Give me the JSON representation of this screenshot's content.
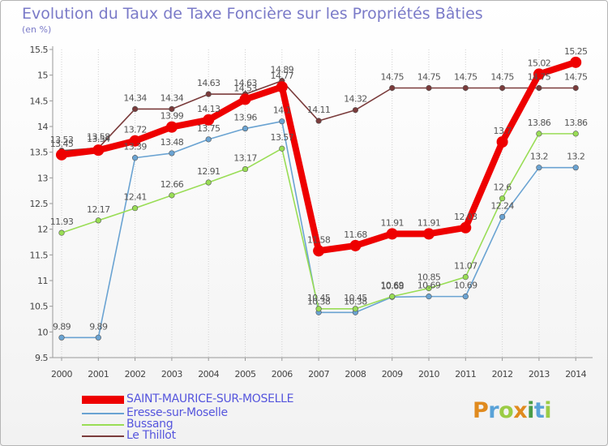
{
  "title": "Evolution du Taux de Taxe Foncière sur les Propriétés Bâties",
  "unit_label": "(en %)",
  "logo": "Proxiti",
  "chart_data": {
    "type": "line",
    "title": "Evolution du Taux de Taxe Foncière sur les Propriétés Bâties",
    "ylabel": "(en %)",
    "xlabel": "",
    "x": [
      "2000",
      "2001",
      "2002",
      "2003",
      "2004",
      "2005",
      "2006",
      "2007",
      "2008",
      "2009",
      "2010",
      "2011",
      "2012",
      "2013",
      "2014"
    ],
    "ylim": [
      9.5,
      15.5
    ],
    "yticks": [
      "9.5",
      "10",
      "10.5",
      "11",
      "11.5",
      "12",
      "12.5",
      "13",
      "13.5",
      "14",
      "14.5",
      "15",
      "15.5"
    ],
    "grid": "vertical dotted",
    "legend": "bottom-left",
    "series": [
      {
        "name": "SAINT-MAURICE-SUR-MOSELLE",
        "color": "#ee0000",
        "values": [
          13.45,
          13.54,
          13.72,
          13.99,
          14.13,
          14.53,
          14.77,
          11.58,
          11.68,
          11.91,
          11.91,
          12.03,
          13.7,
          15.02,
          15.25
        ],
        "labels": [
          "13.45",
          "13.54",
          "13.72",
          "13.99",
          "14.13",
          "14.53",
          "14.77",
          "11.58",
          "11.68",
          "11.91",
          "11.91",
          "12.03",
          "13.7",
          "15.02",
          "15.25"
        ]
      },
      {
        "name": "Eresse-sur-Moselle",
        "color": "#6aa3d2",
        "values": [
          9.89,
          9.89,
          13.39,
          13.48,
          13.75,
          13.96,
          14.1,
          10.38,
          10.38,
          10.68,
          10.69,
          10.69,
          12.24,
          13.2,
          13.2
        ],
        "labels": [
          "9.89",
          "9.89",
          "13.39",
          "13.48",
          "13.75",
          "13.96",
          "14.1",
          "10.38",
          "10.38",
          "10.68",
          "10.69",
          "10.69",
          "12.24",
          "13.2",
          "13.2"
        ]
      },
      {
        "name": "Bussang",
        "color": "#99dd55",
        "values": [
          11.93,
          12.17,
          12.41,
          12.66,
          12.91,
          13.17,
          13.57,
          10.45,
          10.45,
          10.69,
          10.85,
          11.07,
          12.6,
          13.86,
          13.86
        ],
        "labels": [
          "11.93",
          "12.17",
          "12.41",
          "12.66",
          "12.91",
          "13.17",
          "13.57",
          "10.45",
          "10.45",
          "10.69",
          "10.85",
          "11.07",
          "12.6",
          "13.86",
          "13.86"
        ]
      },
      {
        "name": "Le Thillot",
        "color": "#7a3b3b",
        "values": [
          13.53,
          13.58,
          14.34,
          14.34,
          14.63,
          14.63,
          14.89,
          14.11,
          14.32,
          14.75,
          14.75,
          14.75,
          14.75,
          14.75,
          14.75
        ],
        "labels": [
          "13.53",
          "13.58",
          "14.34",
          "14.34",
          "14.63",
          "14.63",
          "14.89",
          "14.11",
          "14.32",
          "14.75",
          "14.75",
          "14.75",
          "14.75",
          "14.75",
          "14.75"
        ]
      }
    ]
  }
}
